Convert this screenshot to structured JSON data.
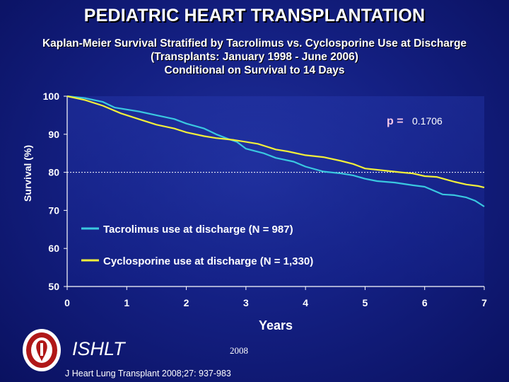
{
  "header": {
    "title": "PEDIATRIC HEART TRANSPLANTATION",
    "subtitle_lines": [
      "Kaplan-Meier Survival Stratified by Tacrolimus vs. Cyclosporine Use at Discharge",
      "(Transplants: January 1998 - June 2006)",
      "Conditional on Survival to 14 Days"
    ]
  },
  "chart_data": {
    "type": "line",
    "xlabel": "Years",
    "ylabel": "Survival (%)",
    "xlim": [
      0,
      7
    ],
    "ylim": [
      50,
      100
    ],
    "x_ticks": [
      0,
      1,
      2,
      3,
      4,
      5,
      6,
      7
    ],
    "y_ticks": [
      50,
      60,
      70,
      80,
      90,
      100
    ],
    "reference_line": 80,
    "pvalue_label": "p =",
    "pvalue": "0.1706",
    "series": [
      {
        "name": "Tacrolimus use at discharge (N = 987)",
        "color": "#3ac8e0",
        "x": [
          0,
          0.3,
          0.6,
          0.8,
          1.0,
          1.2,
          1.5,
          1.8,
          2.0,
          2.3,
          2.5,
          2.7,
          2.85,
          3.0,
          3.3,
          3.5,
          3.8,
          4.0,
          4.3,
          4.6,
          4.8,
          5.0,
          5.2,
          5.5,
          5.8,
          6.0,
          6.15,
          6.3,
          6.5,
          6.7,
          6.85,
          7.0
        ],
        "values": [
          100,
          99.5,
          98.5,
          97.0,
          96.5,
          96.0,
          95.0,
          94.0,
          92.8,
          91.5,
          90.0,
          88.8,
          88.0,
          86.2,
          85.0,
          83.8,
          82.8,
          81.5,
          80.2,
          79.7,
          79.2,
          78.3,
          77.7,
          77.3,
          76.6,
          76.2,
          75.2,
          74.2,
          74.0,
          73.4,
          72.5,
          71.0
        ]
      },
      {
        "name": "Cyclosporine use at discharge (N = 1,330)",
        "color": "#f2ef3a",
        "x": [
          0,
          0.3,
          0.6,
          0.9,
          1.2,
          1.5,
          1.8,
          2.0,
          2.3,
          2.5,
          2.8,
          3.0,
          3.2,
          3.5,
          3.7,
          4.0,
          4.3,
          4.6,
          4.8,
          5.0,
          5.3,
          5.6,
          5.8,
          6.0,
          6.2,
          6.5,
          6.7,
          6.9,
          7.0
        ],
        "values": [
          100,
          99.0,
          97.5,
          95.5,
          94.0,
          92.5,
          91.5,
          90.5,
          89.5,
          89.0,
          88.5,
          88.0,
          87.5,
          86.0,
          85.5,
          84.5,
          84.0,
          83.0,
          82.2,
          81.0,
          80.5,
          80.0,
          79.7,
          79.0,
          78.8,
          77.5,
          76.8,
          76.4,
          76.0
        ]
      }
    ]
  },
  "footer": {
    "org": "ISHLT",
    "year": "2008",
    "citation": "J Heart Lung Transplant 2008;27: 937-983"
  }
}
